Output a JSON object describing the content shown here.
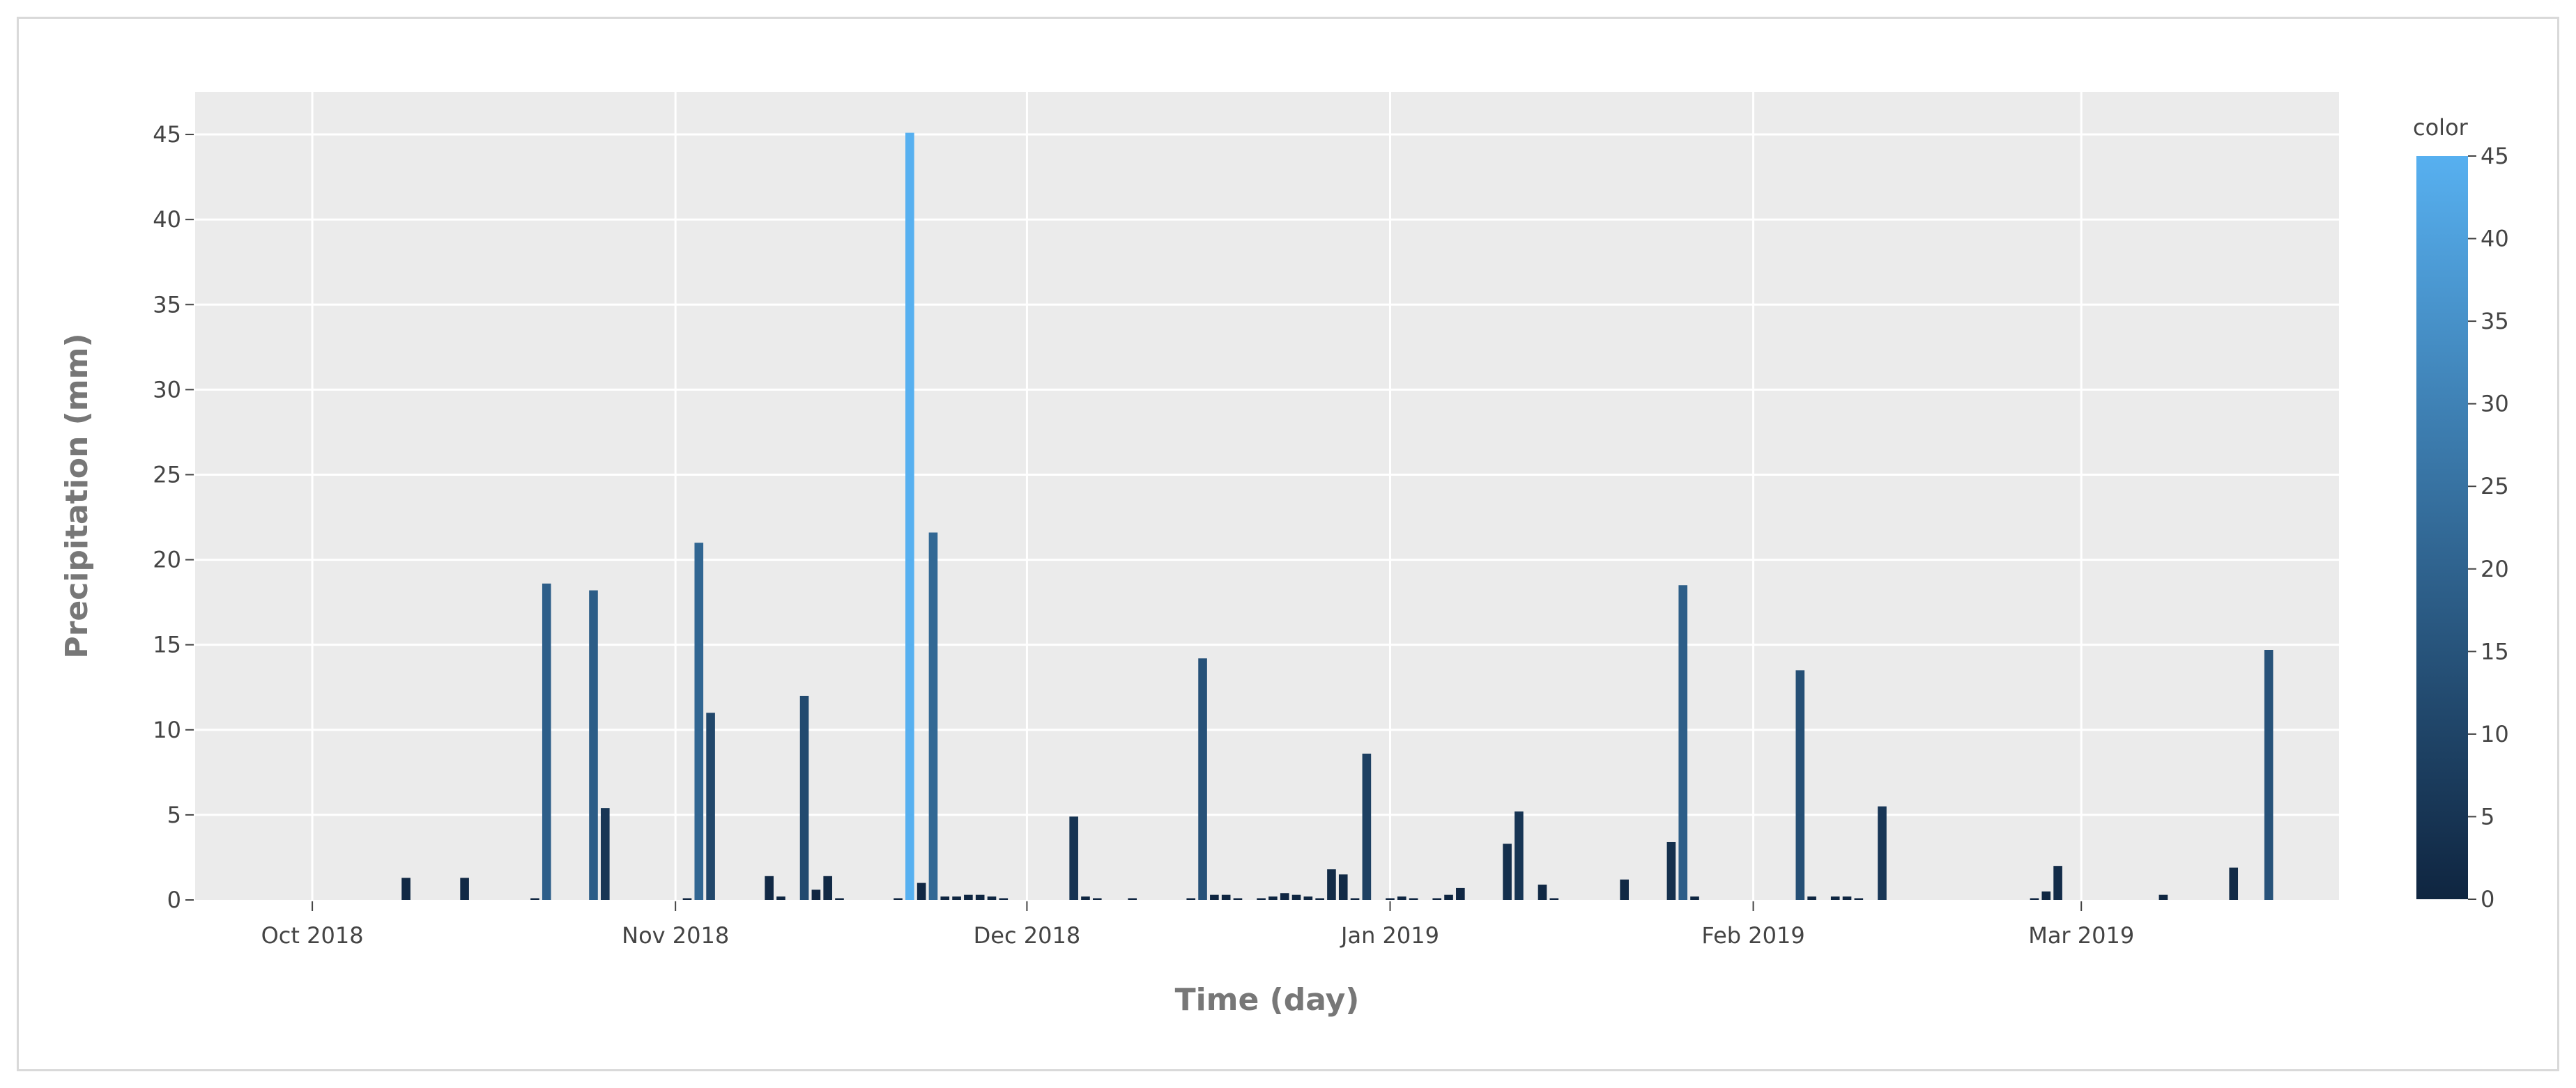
{
  "chart_data": {
    "type": "bar",
    "xlabel": "Time (day)",
    "ylabel": "Precipitation (mm)",
    "ylim": [
      0,
      47.5
    ],
    "xlim": [
      "2018-09-21",
      "2019-03-23"
    ],
    "yticks": [
      0,
      5,
      10,
      15,
      20,
      25,
      30,
      35,
      40,
      45
    ],
    "ytick_labels": [
      "0",
      "5",
      "10",
      "15",
      "20",
      "25",
      "30",
      "35",
      "40",
      "45"
    ],
    "xticks": [
      {
        "date": "2018-10-01",
        "label": "Oct 2018"
      },
      {
        "date": "2018-11-01",
        "label": "Nov 2018"
      },
      {
        "date": "2018-12-01",
        "label": "Dec 2018"
      },
      {
        "date": "2019-01-01",
        "label": "Jan 2019"
      },
      {
        "date": "2019-02-01",
        "label": "Feb 2019"
      },
      {
        "date": "2019-03-01",
        "label": "Mar 2019"
      }
    ],
    "grid": true,
    "legend": "none",
    "colorbar": {
      "title": "color",
      "range": [
        0,
        45
      ],
      "ticks": [
        0,
        5,
        10,
        15,
        20,
        25,
        30,
        35,
        40,
        45
      ],
      "tick_labels": [
        "0",
        "5",
        "10",
        "15",
        "20",
        "25",
        "30",
        "35",
        "40",
        "45"
      ],
      "color_low": "#0f2540",
      "color_high": "#57b0f0"
    },
    "x": [
      "2018-10-09",
      "2018-10-14",
      "2018-10-20",
      "2018-10-21",
      "2018-10-25",
      "2018-10-26",
      "2018-11-02",
      "2018-11-03",
      "2018-11-04",
      "2018-11-09",
      "2018-11-10",
      "2018-11-12",
      "2018-11-13",
      "2018-11-14",
      "2018-11-15",
      "2018-11-20",
      "2018-11-21",
      "2018-11-22",
      "2018-11-23",
      "2018-11-24",
      "2018-11-25",
      "2018-11-26",
      "2018-11-27",
      "2018-11-28",
      "2018-11-29",
      "2018-12-05",
      "2018-12-06",
      "2018-12-07",
      "2018-12-10",
      "2018-12-15",
      "2018-12-16",
      "2018-12-17",
      "2018-12-18",
      "2018-12-19",
      "2018-12-21",
      "2018-12-22",
      "2018-12-23",
      "2018-12-24",
      "2018-12-25",
      "2018-12-26",
      "2018-12-27",
      "2018-12-28",
      "2018-12-29",
      "2018-12-30",
      "2019-01-01",
      "2019-01-02",
      "2019-01-03",
      "2019-01-05",
      "2019-01-06",
      "2019-01-07",
      "2019-01-11",
      "2019-01-12",
      "2019-01-14",
      "2019-01-15",
      "2019-01-21",
      "2019-01-25",
      "2019-01-26",
      "2019-01-27",
      "2019-02-05",
      "2019-02-06",
      "2019-02-08",
      "2019-02-09",
      "2019-02-10",
      "2019-02-12",
      "2019-02-25",
      "2019-02-26",
      "2019-02-27",
      "2019-03-08",
      "2019-03-14",
      "2019-03-17"
    ],
    "values": [
      1.3,
      1.3,
      0.1,
      18.6,
      18.2,
      5.4,
      0.1,
      21.0,
      11.0,
      1.4,
      0.2,
      12.0,
      0.6,
      1.4,
      0.1,
      0.1,
      45.1,
      1.0,
      21.6,
      0.2,
      0.2,
      0.3,
      0.3,
      0.2,
      0.1,
      4.9,
      0.2,
      0.1,
      0.1,
      0.1,
      14.2,
      0.3,
      0.3,
      0.1,
      0.1,
      0.2,
      0.4,
      0.3,
      0.2,
      0.1,
      1.8,
      1.5,
      0.1,
      8.6,
      0.1,
      0.2,
      0.1,
      0.1,
      0.3,
      0.7,
      3.3,
      5.2,
      0.9,
      0.1,
      1.2,
      3.4,
      18.5,
      0.2,
      13.5,
      0.2,
      0.2,
      0.2,
      0.1,
      5.5,
      0.1,
      0.5,
      2.0,
      0.3,
      1.9,
      14.7
    ]
  }
}
